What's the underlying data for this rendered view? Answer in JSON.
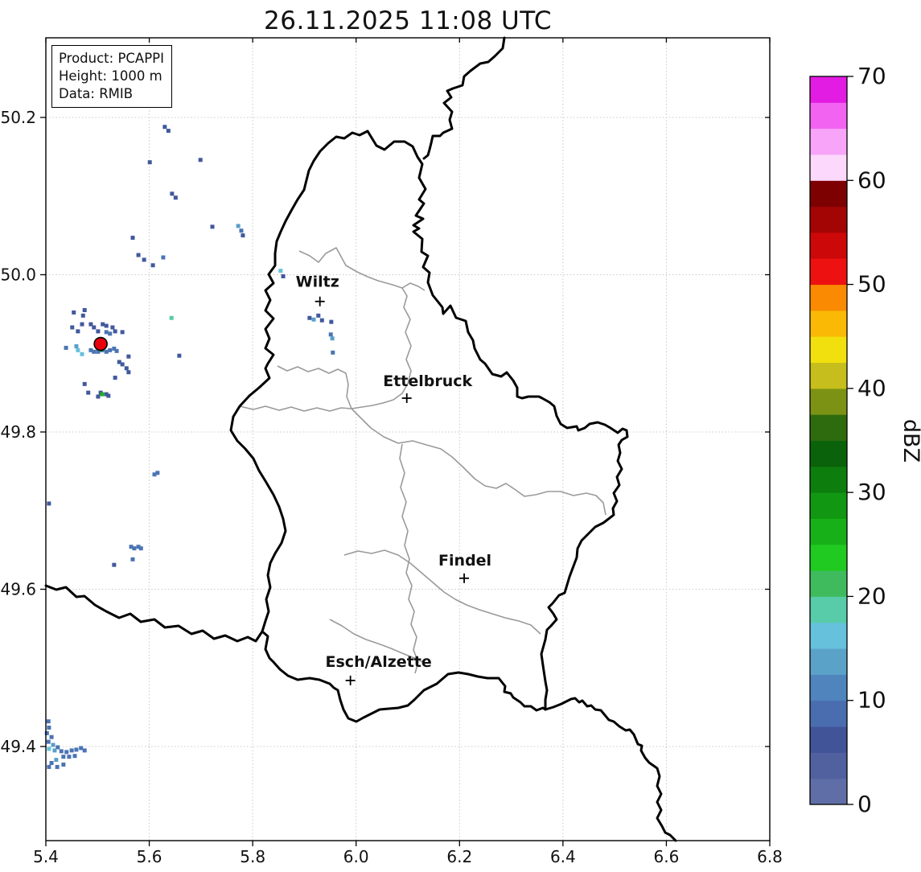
{
  "title": "26.11.2025 11:08 UTC",
  "info_box": {
    "lines": [
      "Product: PCAPPI",
      "Height: 1000 m",
      "Data: RMIB"
    ]
  },
  "axes": {
    "x_tick_values": [
      5.4,
      5.6,
      5.8,
      6.0,
      6.2,
      6.4,
      6.6,
      6.8
    ],
    "x_tick_labels": [
      "5.4",
      "5.6",
      "5.8",
      "6.0",
      "6.2",
      "6.4",
      "6.6",
      "6.8"
    ],
    "y_tick_values": [
      50.2,
      50.0,
      49.8,
      49.6,
      49.4
    ],
    "y_tick_labels": [
      "50.2",
      "50.0",
      "49.8",
      "49.6",
      "49.4"
    ],
    "x_range": [
      5.4,
      6.8
    ],
    "y_range": [
      49.28,
      50.3
    ],
    "grid": "dotted"
  },
  "colorbar": {
    "label": "dBZ",
    "tick_values": [
      0,
      10,
      20,
      30,
      40,
      50,
      60,
      70
    ],
    "tick_labels": [
      "0",
      "10",
      "20",
      "30",
      "40",
      "50",
      "60",
      "70"
    ],
    "vmin": 0,
    "vmax": 70,
    "segment_step": 2.5,
    "segment_colors_bottom_to_top": [
      "#606ea7",
      "#51619f",
      "#415498",
      "#4a6db0",
      "#4f84bc",
      "#5ba2c9",
      "#65c1dc",
      "#58cba9",
      "#3fbb5e",
      "#20ca20",
      "#18b018",
      "#119711",
      "#0d7d0d",
      "#0a620a",
      "#2e6b0e",
      "#7c9214",
      "#c6be1c",
      "#f2e00e",
      "#f9b905",
      "#f98a02",
      "#ee1111",
      "#cd0808",
      "#a30404",
      "#7d0101",
      "#fcd9fc",
      "#f8a4f8",
      "#f263f2",
      "#e31ce3"
    ]
  },
  "cities": [
    {
      "name": "Wiltz",
      "lon": 5.93,
      "lat": 49.966,
      "label_offset": [
        -3,
        -18
      ]
    },
    {
      "name": "Ettelbruck",
      "lon": 6.098,
      "lat": 49.843,
      "label_offset": [
        26,
        -15
      ]
    },
    {
      "name": "Findel",
      "lon": 6.209,
      "lat": 49.614,
      "label_offset": [
        1,
        -16
      ]
    },
    {
      "name": "Esch/Alzette",
      "lon": 5.989,
      "lat": 49.484,
      "label_offset": [
        35,
        -17
      ]
    }
  ],
  "radar_site": {
    "lon": 5.506,
    "lat": 49.912,
    "marker_color": "#e8000d"
  },
  "radar_echoes": {
    "colors": {
      "d": "#41589c",
      "m": "#4a74b3",
      "l": "#5b9ec8",
      "c": "#65c1dc",
      "t": "#58cba9",
      "g": "#1fae1f"
    },
    "points": [
      [
        5.63,
        50.188,
        "d"
      ],
      [
        5.637,
        50.183,
        "d"
      ],
      [
        5.601,
        50.143,
        "d"
      ],
      [
        5.699,
        50.146,
        "d"
      ],
      [
        5.644,
        50.103,
        "d"
      ],
      [
        5.651,
        50.098,
        "d"
      ],
      [
        5.722,
        50.061,
        "d"
      ],
      [
        5.772,
        50.062,
        "l"
      ],
      [
        5.778,
        50.056,
        "m"
      ],
      [
        5.781,
        50.05,
        "d"
      ],
      [
        5.568,
        50.047,
        "d"
      ],
      [
        5.579,
        50.025,
        "d"
      ],
      [
        5.59,
        50.019,
        "d"
      ],
      [
        5.607,
        50.012,
        "d"
      ],
      [
        5.627,
        50.022,
        "m"
      ],
      [
        5.454,
        49.952,
        "d"
      ],
      [
        5.472,
        49.948,
        "d"
      ],
      [
        5.475,
        49.955,
        "d"
      ],
      [
        5.451,
        49.933,
        "d"
      ],
      [
        5.462,
        49.928,
        "d"
      ],
      [
        5.47,
        49.937,
        "d"
      ],
      [
        5.487,
        49.937,
        "d"
      ],
      [
        5.493,
        49.933,
        "d"
      ],
      [
        5.501,
        49.928,
        "d"
      ],
      [
        5.51,
        49.937,
        "d"
      ],
      [
        5.517,
        49.935,
        "d"
      ],
      [
        5.529,
        49.933,
        "d"
      ],
      [
        5.534,
        49.928,
        "d"
      ],
      [
        5.548,
        49.927,
        "d"
      ],
      [
        5.517,
        49.927,
        "m"
      ],
      [
        5.524,
        49.925,
        "m"
      ],
      [
        5.439,
        49.907,
        "m"
      ],
      [
        5.459,
        49.909,
        "l"
      ],
      [
        5.462,
        49.904,
        "c"
      ],
      [
        5.47,
        49.899,
        "c"
      ],
      [
        5.487,
        49.904,
        "m"
      ],
      [
        5.493,
        49.902,
        "m"
      ],
      [
        5.501,
        49.902,
        "m"
      ],
      [
        5.509,
        49.904,
        "m"
      ],
      [
        5.517,
        49.902,
        "m"
      ],
      [
        5.524,
        49.904,
        "m"
      ],
      [
        5.532,
        49.906,
        "m"
      ],
      [
        5.537,
        49.903,
        "m"
      ],
      [
        5.501,
        49.907,
        "g"
      ],
      [
        5.507,
        49.905,
        "g"
      ],
      [
        5.542,
        49.889,
        "d"
      ],
      [
        5.548,
        49.886,
        "d"
      ],
      [
        5.556,
        49.881,
        "d"
      ],
      [
        5.56,
        49.896,
        "d"
      ],
      [
        5.56,
        49.876,
        "d"
      ],
      [
        5.534,
        49.869,
        "d"
      ],
      [
        5.475,
        49.861,
        "d"
      ],
      [
        5.506,
        49.85,
        "d"
      ],
      [
        5.517,
        49.848,
        "d"
      ],
      [
        5.521,
        49.846,
        "d"
      ],
      [
        5.482,
        49.85,
        "d"
      ],
      [
        5.501,
        49.845,
        "d"
      ],
      [
        5.509,
        49.848,
        "g"
      ],
      [
        5.643,
        49.945,
        "t"
      ],
      [
        5.658,
        49.897,
        "d"
      ],
      [
        5.61,
        49.746,
        "m"
      ],
      [
        5.616,
        49.748,
        "m"
      ],
      [
        5.406,
        49.709,
        "d"
      ],
      [
        5.565,
        49.654,
        "m"
      ],
      [
        5.571,
        49.652,
        "m"
      ],
      [
        5.579,
        49.654,
        "m"
      ],
      [
        5.584,
        49.652,
        "m"
      ],
      [
        5.568,
        49.638,
        "m"
      ],
      [
        5.532,
        49.631,
        "d"
      ],
      [
        5.854,
        50.005,
        "c"
      ],
      [
        5.859,
        49.998,
        "d"
      ],
      [
        5.91,
        49.945,
        "d"
      ],
      [
        5.918,
        49.943,
        "l"
      ],
      [
        5.927,
        49.948,
        "d"
      ],
      [
        5.934,
        49.942,
        "d"
      ],
      [
        5.952,
        49.94,
        "d"
      ],
      [
        5.951,
        49.924,
        "m"
      ],
      [
        5.954,
        49.919,
        "l"
      ],
      [
        5.955,
        49.901,
        "m"
      ],
      [
        5.405,
        49.432,
        "m"
      ],
      [
        5.406,
        49.424,
        "m"
      ],
      [
        5.402,
        49.417,
        "m"
      ],
      [
        5.411,
        49.412,
        "m"
      ],
      [
        5.405,
        49.406,
        "m"
      ],
      [
        5.414,
        49.402,
        "l"
      ],
      [
        5.423,
        49.399,
        "m"
      ],
      [
        5.406,
        49.397,
        "c"
      ],
      [
        5.417,
        49.395,
        "l"
      ],
      [
        5.43,
        49.394,
        "m"
      ],
      [
        5.44,
        49.393,
        "m"
      ],
      [
        5.45,
        49.395,
        "m"
      ],
      [
        5.459,
        49.396,
        "m"
      ],
      [
        5.468,
        49.398,
        "m"
      ],
      [
        5.475,
        49.395,
        "m"
      ],
      [
        5.434,
        49.387,
        "m"
      ],
      [
        5.445,
        49.387,
        "m"
      ],
      [
        5.456,
        49.388,
        "m"
      ],
      [
        5.42,
        49.383,
        "l"
      ],
      [
        5.411,
        49.379,
        "m"
      ],
      [
        5.406,
        49.374,
        "m"
      ],
      [
        5.422,
        49.374,
        "m"
      ],
      [
        5.434,
        49.377,
        "m"
      ]
    ]
  }
}
